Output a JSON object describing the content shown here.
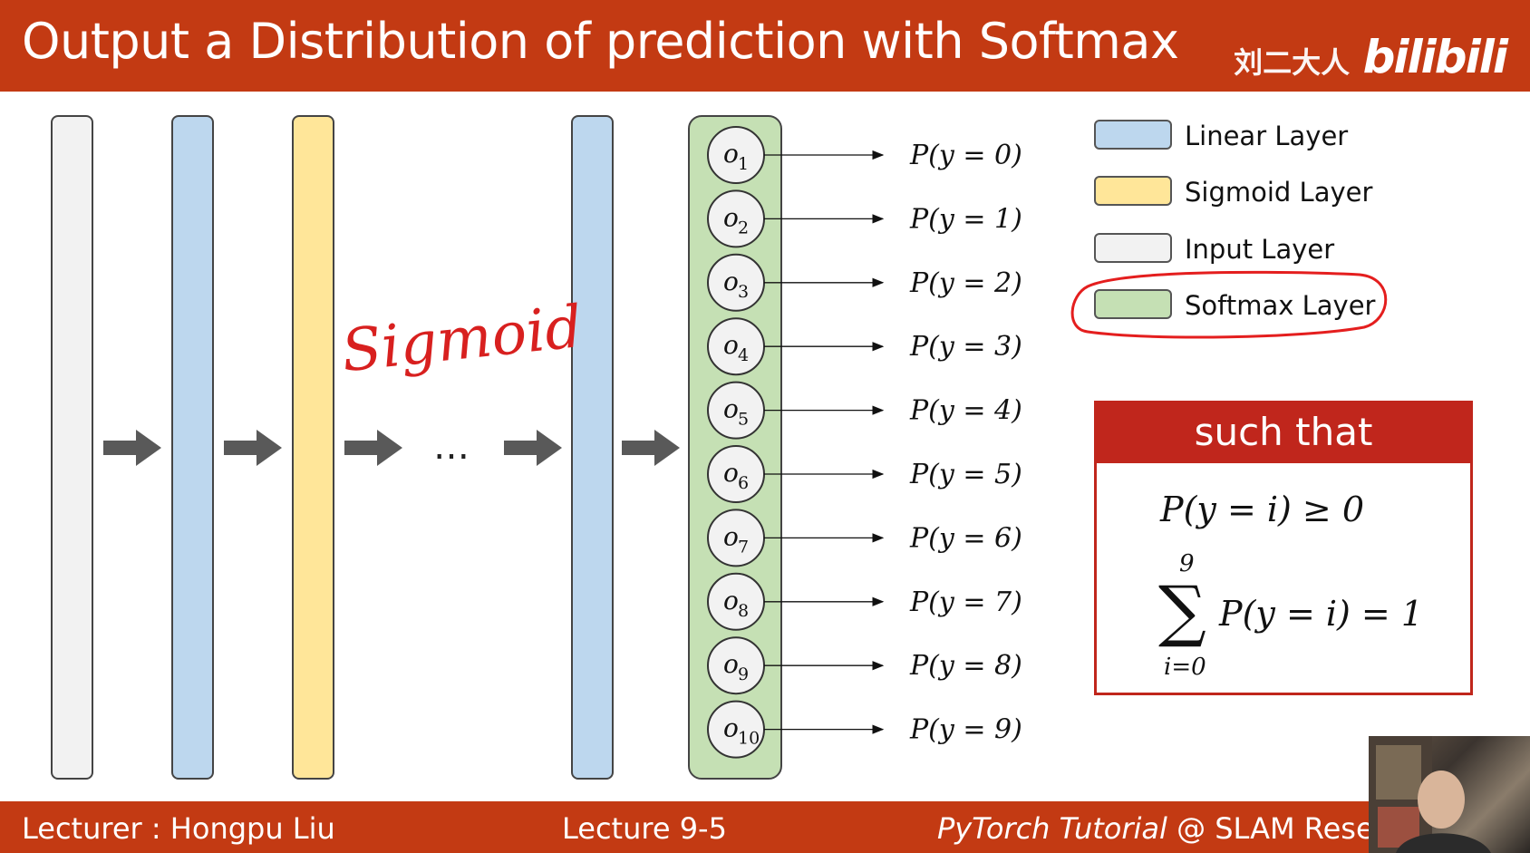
{
  "header": {
    "title": "Output a Distribution of prediction with Softmax",
    "brand_cn": "刘二大人",
    "brand_logo": "bilibili"
  },
  "diagram": {
    "annotation": "Sigmoid",
    "ellipsis": "…",
    "nodes": [
      "o",
      "o",
      "o",
      "o",
      "o",
      "o",
      "o",
      "o",
      "o",
      "o"
    ],
    "node_subscripts": [
      "1",
      "2",
      "3",
      "4",
      "5",
      "6",
      "7",
      "8",
      "9",
      "10"
    ],
    "outputs": [
      "P(y = 0)",
      "P(y = 1)",
      "P(y = 2)",
      "P(y = 3)",
      "P(y = 4)",
      "P(y = 5)",
      "P(y = 6)",
      "P(y = 7)",
      "P(y = 8)",
      "P(y = 9)"
    ],
    "layer_colors": {
      "input": "#f2f2f2",
      "linear": "#bdd7ee",
      "sigmoid": "#ffe699",
      "softmax": "#c5e0b4"
    }
  },
  "legend": {
    "items": [
      {
        "label": "Linear Layer",
        "color": "#bdd7ee"
      },
      {
        "label": "Sigmoid Layer",
        "color": "#ffe699"
      },
      {
        "label": "Input Layer",
        "color": "#f2f2f2"
      },
      {
        "label": "Softmax Layer",
        "color": "#c5e0b4"
      }
    ]
  },
  "condition": {
    "heading": "such that",
    "eq1": "P(y = i) ≥ 0",
    "sum_top": "9",
    "sum_symbol": "∑",
    "sum_bottom": "i=0",
    "eq2": "P(y = i) = 1"
  },
  "footer": {
    "lecturer": "Lecturer : Hongpu Liu",
    "lecture": "Lecture 9-5",
    "course_italic": "PyTorch Tutorial",
    "course_rest": " @ SLAM Resea"
  }
}
